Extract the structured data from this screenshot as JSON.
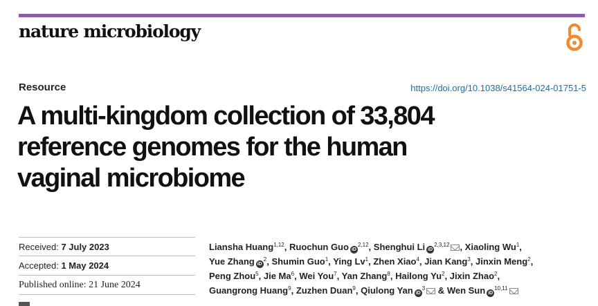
{
  "journal": {
    "name": "nature microbiology"
  },
  "colors": {
    "accent_bar": "#8f5ca8",
    "open_access": "#f08a2c",
    "doi_link": "#1a6fa8"
  },
  "icons": {
    "open_access": "open-access-lock-icon",
    "orcid": "orcid-icon",
    "email": "email-icon"
  },
  "article": {
    "section": "Resource",
    "doi": "https://doi.org/10.1038/s41564-024-01751-5",
    "title_lines": [
      "A multi-kingdom collection of 33,804",
      "reference genomes for the human",
      "vaginal microbiome"
    ]
  },
  "dates": {
    "received_label": "Received:",
    "received_value": "7 July 2023",
    "accepted_label": "Accepted:",
    "accepted_value": "1 May 2024",
    "published": "Published online: 21 June 2024"
  },
  "authors": [
    {
      "name": "Liansha Huang",
      "sup": "1,12",
      "orcid": false,
      "email": false,
      "sep": ","
    },
    {
      "name": "Ruochun Guo",
      "sup": "2,12",
      "orcid": true,
      "email": false,
      "sep": ","
    },
    {
      "name": "Shenghui Li",
      "sup": "2,3,12",
      "orcid": true,
      "email": true,
      "sep": ","
    },
    {
      "name": "Xiaoling Wu",
      "sup": "1",
      "orcid": false,
      "email": false,
      "sep": ","
    },
    {
      "name": "Yue Zhang",
      "sup": "2",
      "orcid": true,
      "email": false,
      "sep": ","
    },
    {
      "name": "Shumin Guo",
      "sup": "1",
      "orcid": false,
      "email": false,
      "sep": ","
    },
    {
      "name": "Ying Lv",
      "sup": "1",
      "orcid": false,
      "email": false,
      "sep": ","
    },
    {
      "name": "Zhen Xiao",
      "sup": "4",
      "orcid": false,
      "email": false,
      "sep": ","
    },
    {
      "name": "Jian Kang",
      "sup": "3",
      "orcid": false,
      "email": false,
      "sep": ","
    },
    {
      "name": "Jinxin Meng",
      "sup": "2",
      "orcid": false,
      "email": false,
      "sep": ","
    },
    {
      "name": "Peng Zhou",
      "sup": "5",
      "orcid": false,
      "email": false,
      "sep": ","
    },
    {
      "name": "Jie Ma",
      "sup": "6",
      "orcid": false,
      "email": false,
      "sep": ","
    },
    {
      "name": "Wei You",
      "sup": "7",
      "orcid": false,
      "email": false,
      "sep": ","
    },
    {
      "name": "Yan Zhang",
      "sup": "8",
      "orcid": false,
      "email": false,
      "sep": ","
    },
    {
      "name": "Hailong Yu",
      "sup": "2",
      "orcid": false,
      "email": false,
      "sep": ","
    },
    {
      "name": "Jixin Zhao",
      "sup": "2",
      "orcid": false,
      "email": false,
      "sep": ","
    },
    {
      "name": "Guangrong Huang",
      "sup": "9",
      "orcid": false,
      "email": false,
      "sep": ","
    },
    {
      "name": "Zuzhen Duan",
      "sup": "9",
      "orcid": false,
      "email": false,
      "sep": ","
    },
    {
      "name": "Qiulong Yan",
      "sup": "3",
      "orcid": true,
      "email": true,
      "sep": " &"
    },
    {
      "name": "Wen Sun",
      "sup": "10,11",
      "orcid": true,
      "email": true,
      "sep": ""
    }
  ]
}
